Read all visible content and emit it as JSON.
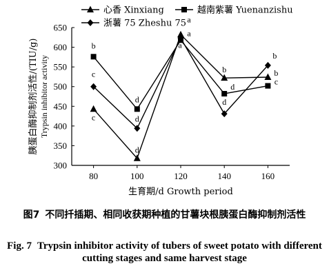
{
  "chart_data": {
    "type": "line",
    "categories": [
      "80",
      "100",
      "120",
      "140",
      "160"
    ],
    "x": [
      80,
      100,
      120,
      140,
      160
    ],
    "ylim": [
      300,
      650
    ],
    "yticks": [
      300,
      350,
      400,
      450,
      500,
      550,
      600,
      650
    ],
    "xlabel": "生育期/d Growth period",
    "ylabel_cn": "胰蛋白酶抑制剂活性/(TIU/g)",
    "ylabel_en": "Trypsin inhibitor activity",
    "legend_position": "top",
    "series": [
      {
        "name": "心香 Xinxiang",
        "marker": "triangle",
        "values": [
          443,
          318,
          632,
          522,
          524
        ],
        "labels": [
          "c",
          "d",
          "a",
          "b",
          "b"
        ]
      },
      {
        "name": "越南紫薯 Yuenanzishu",
        "marker": "square",
        "values": [
          576,
          443,
          618,
          482,
          502
        ],
        "labels": [
          "b",
          "d",
          "a",
          "d",
          "c"
        ]
      },
      {
        "name": "浙薯 75 Zheshu 75",
        "marker": "diamond",
        "values": [
          500,
          394,
          623,
          431,
          554
        ],
        "labels": [
          "c",
          "d",
          "a",
          "d",
          "b"
        ]
      }
    ]
  },
  "caption": {
    "cn_fig": "图7",
    "cn_text": "不同扦插期、相同收获期种植的甘薯块根胰蛋白酶抑制剂活性",
    "en_fig": "Fig. 7",
    "en_text": "Trypsin inhibitor activity of tubers of sweet potato with different cutting stages and same harvest stage"
  }
}
